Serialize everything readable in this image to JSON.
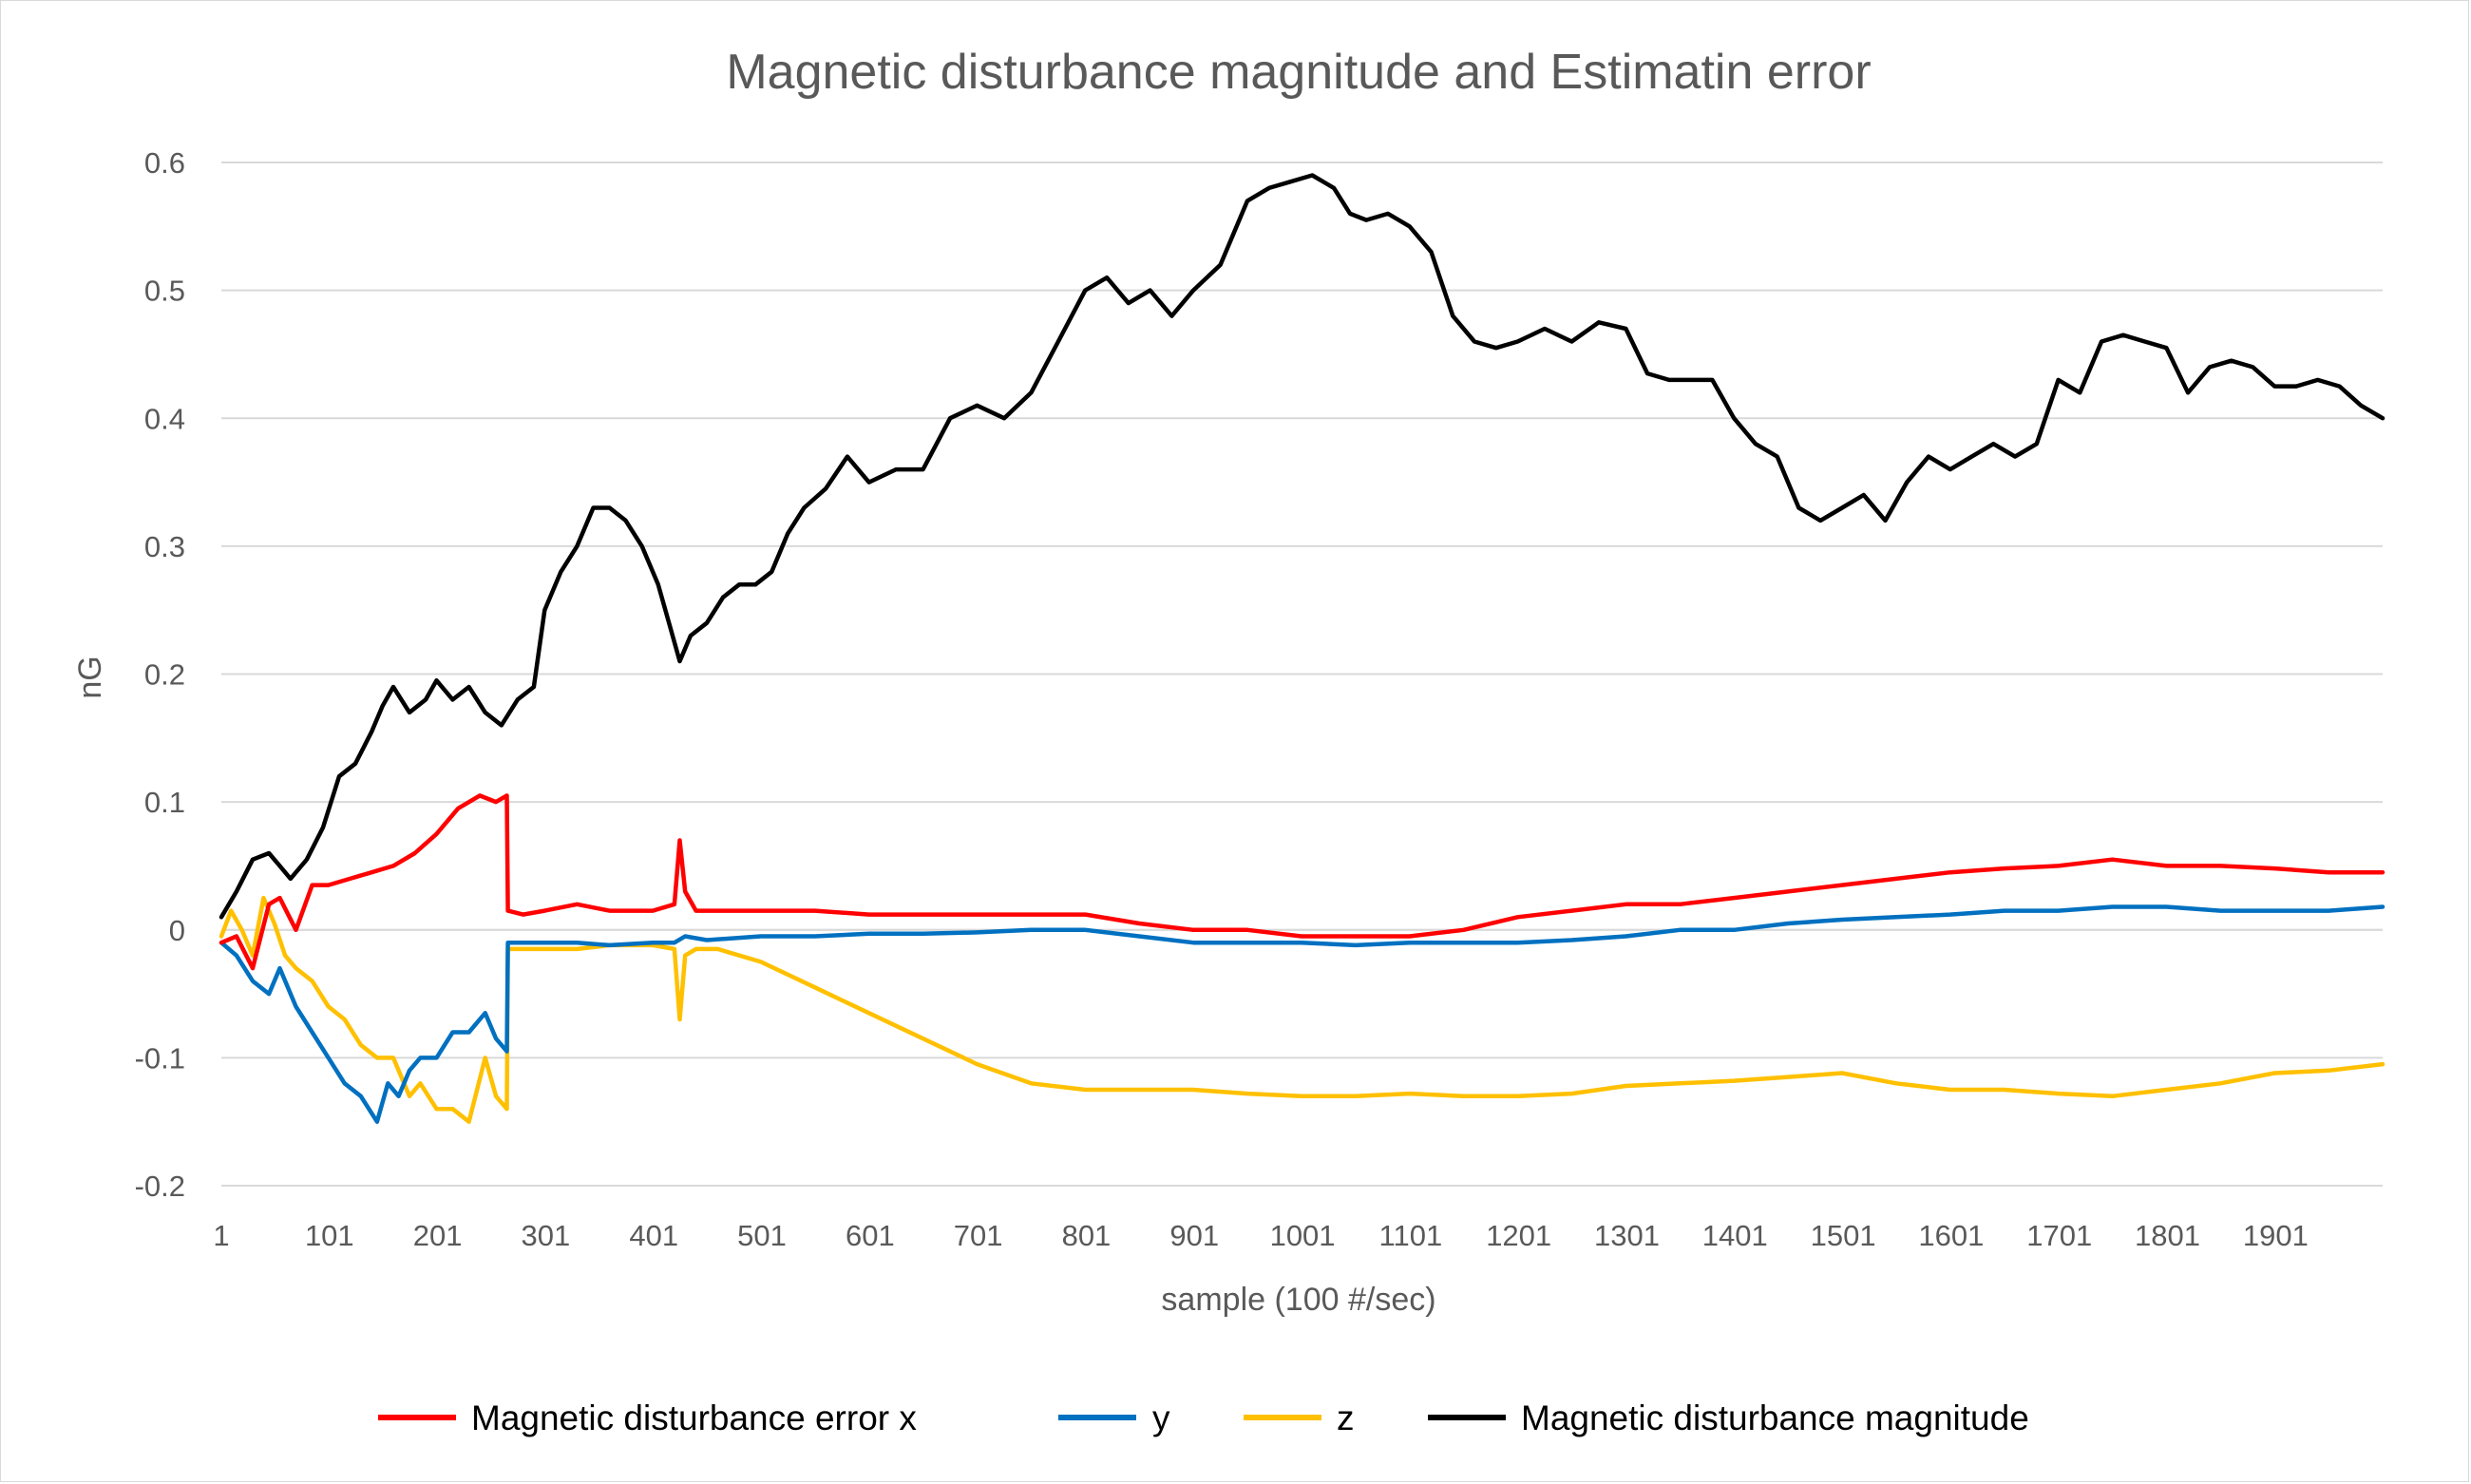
{
  "chart_data": {
    "type": "line",
    "title": "Magnetic disturbance magnitude and Estimatin error",
    "xlabel": "sample (100 #/sec)",
    "ylabel": "nG",
    "ylim": [
      -0.2,
      0.6
    ],
    "xlim": [
      1,
      2000
    ],
    "y_ticks": [
      -0.2,
      -0.1,
      0,
      0.1,
      0.2,
      0.3,
      0.4,
      0.5,
      0.6
    ],
    "y_tick_labels": [
      "-0.2",
      "-0.1",
      "0",
      "0.1",
      "0.2",
      "0.3",
      "0.4",
      "0.5",
      "0.6"
    ],
    "x_ticks": [
      1,
      101,
      201,
      301,
      401,
      501,
      601,
      701,
      801,
      901,
      1001,
      1101,
      1201,
      1301,
      1401,
      1501,
      1601,
      1701,
      1801,
      1901
    ],
    "x_tick_labels": [
      "1",
      "101",
      "201",
      "301",
      "401",
      "501",
      "601",
      "701",
      "801",
      "901",
      "1001",
      "1101",
      "1201",
      "1301",
      "1401",
      "1501",
      "1601",
      "1701",
      "1801",
      "1901"
    ],
    "grid": "horizontal",
    "legend_position": "bottom",
    "series": [
      {
        "name": "Magnetic disturbance error x",
        "color": "#ff0000",
        "x": [
          1,
          15,
          30,
          45,
          55,
          70,
          85,
          100,
          120,
          140,
          160,
          180,
          200,
          220,
          240,
          255,
          265,
          266,
          280,
          300,
          330,
          360,
          400,
          420,
          425,
          430,
          440,
          460,
          500,
          550,
          600,
          650,
          700,
          750,
          800,
          850,
          900,
          950,
          1000,
          1050,
          1100,
          1150,
          1200,
          1250,
          1300,
          1350,
          1400,
          1450,
          1500,
          1550,
          1600,
          1650,
          1700,
          1750,
          1800,
          1850,
          1900,
          1950,
          2000
        ],
        "y": [
          -0.01,
          -0.005,
          -0.03,
          0.02,
          0.025,
          0.0,
          0.035,
          0.035,
          0.04,
          0.045,
          0.05,
          0.06,
          0.075,
          0.095,
          0.105,
          0.1,
          0.105,
          0.015,
          0.012,
          0.015,
          0.02,
          0.015,
          0.015,
          0.02,
          0.07,
          0.03,
          0.015,
          0.015,
          0.015,
          0.015,
          0.012,
          0.012,
          0.012,
          0.012,
          0.012,
          0.005,
          0.0,
          0.0,
          -0.005,
          -0.005,
          -0.005,
          0.0,
          0.01,
          0.015,
          0.02,
          0.02,
          0.025,
          0.03,
          0.035,
          0.04,
          0.045,
          0.048,
          0.05,
          0.055,
          0.05,
          0.05,
          0.048,
          0.045,
          0.045
        ]
      },
      {
        "name": "y",
        "color": "#0070c0",
        "x": [
          1,
          15,
          30,
          45,
          55,
          70,
          85,
          100,
          115,
          130,
          145,
          155,
          165,
          175,
          185,
          200,
          215,
          230,
          245,
          255,
          265,
          266,
          280,
          300,
          330,
          360,
          400,
          420,
          430,
          450,
          500,
          550,
          600,
          650,
          700,
          750,
          800,
          850,
          900,
          950,
          1000,
          1050,
          1100,
          1150,
          1200,
          1250,
          1300,
          1350,
          1400,
          1450,
          1500,
          1550,
          1600,
          1650,
          1700,
          1750,
          1800,
          1850,
          1900,
          1950,
          2000
        ],
        "y": [
          -0.01,
          -0.02,
          -0.04,
          -0.05,
          -0.03,
          -0.06,
          -0.08,
          -0.1,
          -0.12,
          -0.13,
          -0.15,
          -0.12,
          -0.13,
          -0.11,
          -0.1,
          -0.1,
          -0.08,
          -0.08,
          -0.065,
          -0.085,
          -0.095,
          -0.01,
          -0.01,
          -0.01,
          -0.01,
          -0.012,
          -0.01,
          -0.01,
          -0.005,
          -0.008,
          -0.005,
          -0.005,
          -0.003,
          -0.003,
          -0.002,
          0.0,
          0.0,
          -0.005,
          -0.01,
          -0.01,
          -0.01,
          -0.012,
          -0.01,
          -0.01,
          -0.01,
          -0.008,
          -0.005,
          0.0,
          0.0,
          0.005,
          0.008,
          0.01,
          0.012,
          0.015,
          0.015,
          0.018,
          0.018,
          0.015,
          0.015,
          0.015,
          0.018
        ]
      },
      {
        "name": "z",
        "color": "#ffc000",
        "x": [
          1,
          10,
          20,
          30,
          40,
          50,
          60,
          70,
          85,
          100,
          115,
          130,
          145,
          160,
          175,
          185,
          200,
          215,
          230,
          245,
          255,
          265,
          266,
          280,
          300,
          330,
          360,
          400,
          420,
          425,
          430,
          440,
          460,
          500,
          550,
          600,
          650,
          700,
          750,
          800,
          850,
          900,
          950,
          1000,
          1050,
          1100,
          1150,
          1200,
          1250,
          1300,
          1350,
          1400,
          1450,
          1500,
          1550,
          1600,
          1650,
          1700,
          1750,
          1800,
          1850,
          1900,
          1950,
          2000
        ],
        "y": [
          -0.005,
          0.015,
          0.0,
          -0.02,
          0.025,
          0.005,
          -0.02,
          -0.03,
          -0.04,
          -0.06,
          -0.07,
          -0.09,
          -0.1,
          -0.1,
          -0.13,
          -0.12,
          -0.14,
          -0.14,
          -0.15,
          -0.1,
          -0.13,
          -0.14,
          -0.015,
          -0.015,
          -0.015,
          -0.015,
          -0.012,
          -0.012,
          -0.015,
          -0.07,
          -0.02,
          -0.015,
          -0.015,
          -0.025,
          -0.045,
          -0.065,
          -0.085,
          -0.105,
          -0.12,
          -0.125,
          -0.125,
          -0.125,
          -0.128,
          -0.13,
          -0.13,
          -0.128,
          -0.13,
          -0.13,
          -0.128,
          -0.122,
          -0.12,
          -0.118,
          -0.115,
          -0.112,
          -0.12,
          -0.125,
          -0.125,
          -0.128,
          -0.13,
          -0.125,
          -0.12,
          -0.112,
          -0.11,
          -0.105
        ]
      },
      {
        "name": "Magnetic disturbance magnitude",
        "color": "#000000",
        "x": [
          1,
          15,
          30,
          45,
          55,
          65,
          80,
          95,
          110,
          125,
          140,
          150,
          160,
          175,
          190,
          200,
          215,
          230,
          245,
          260,
          275,
          290,
          300,
          315,
          330,
          345,
          360,
          375,
          390,
          405,
          415,
          425,
          435,
          450,
          465,
          480,
          495,
          510,
          525,
          540,
          560,
          580,
          600,
          625,
          650,
          675,
          700,
          725,
          750,
          775,
          800,
          820,
          840,
          860,
          880,
          900,
          925,
          950,
          970,
          990,
          1010,
          1030,
          1045,
          1060,
          1080,
          1100,
          1120,
          1140,
          1160,
          1180,
          1200,
          1225,
          1250,
          1275,
          1300,
          1320,
          1340,
          1360,
          1380,
          1400,
          1420,
          1440,
          1460,
          1480,
          1500,
          1520,
          1540,
          1560,
          1580,
          1600,
          1620,
          1640,
          1660,
          1680,
          1700,
          1720,
          1740,
          1760,
          1780,
          1800,
          1820,
          1840,
          1860,
          1880,
          1900,
          1920,
          1940,
          1960,
          1980,
          2000
        ],
        "y": [
          0.01,
          0.03,
          0.055,
          0.06,
          0.05,
          0.04,
          0.055,
          0.08,
          0.12,
          0.13,
          0.155,
          0.175,
          0.19,
          0.17,
          0.18,
          0.195,
          0.18,
          0.19,
          0.17,
          0.16,
          0.18,
          0.19,
          0.25,
          0.28,
          0.3,
          0.33,
          0.33,
          0.32,
          0.3,
          0.27,
          0.24,
          0.21,
          0.23,
          0.24,
          0.26,
          0.27,
          0.27,
          0.28,
          0.31,
          0.33,
          0.345,
          0.37,
          0.35,
          0.36,
          0.36,
          0.4,
          0.41,
          0.4,
          0.42,
          0.46,
          0.5,
          0.51,
          0.49,
          0.5,
          0.48,
          0.5,
          0.52,
          0.57,
          0.58,
          0.585,
          0.59,
          0.58,
          0.56,
          0.555,
          0.56,
          0.55,
          0.53,
          0.48,
          0.46,
          0.455,
          0.46,
          0.47,
          0.46,
          0.475,
          0.47,
          0.435,
          0.43,
          0.43,
          0.43,
          0.4,
          0.38,
          0.37,
          0.33,
          0.32,
          0.33,
          0.34,
          0.32,
          0.35,
          0.37,
          0.36,
          0.37,
          0.38,
          0.37,
          0.38,
          0.43,
          0.42,
          0.46,
          0.465,
          0.46,
          0.455,
          0.42,
          0.44,
          0.445,
          0.44,
          0.425,
          0.425,
          0.43,
          0.425,
          0.41,
          0.4
        ]
      }
    ]
  }
}
